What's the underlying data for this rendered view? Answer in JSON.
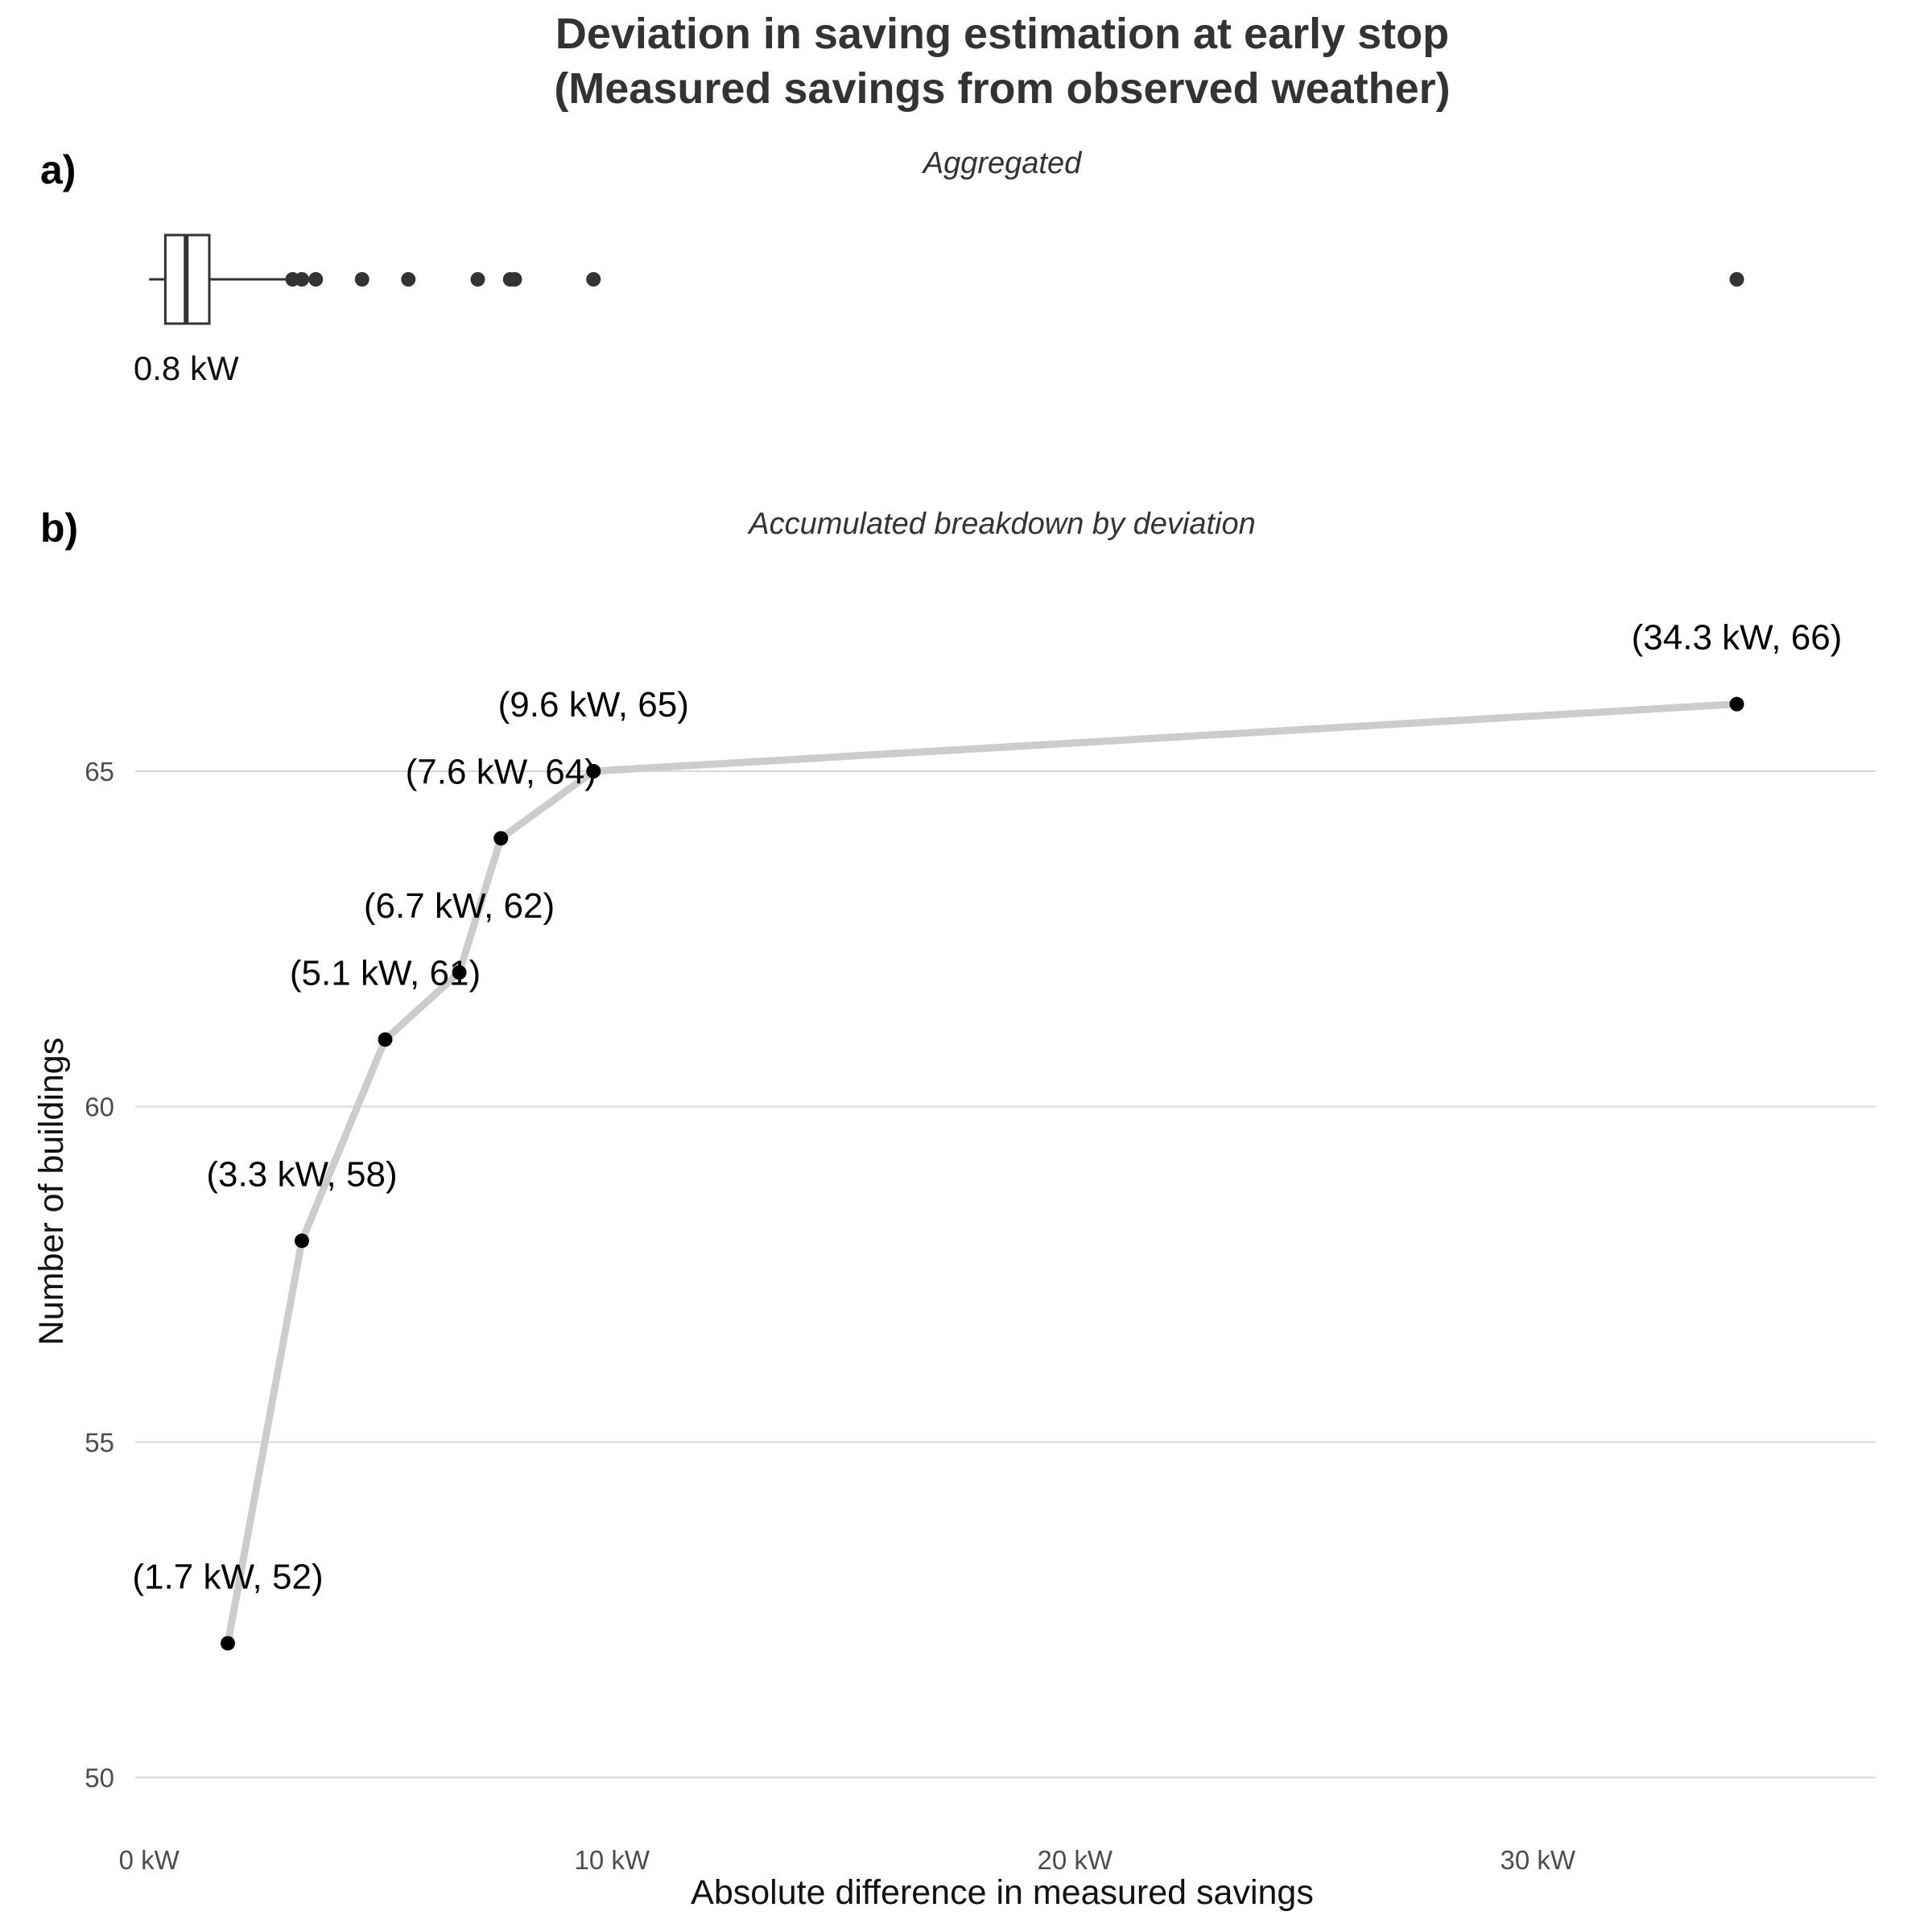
{
  "title_line1": "Deviation in saving estimation at early stop",
  "title_line2": "(Measured savings from observed weather)",
  "chart_data": [
    {
      "panel": "a)",
      "subtitle": "Aggregated",
      "type": "boxplot",
      "orientation": "horizontal",
      "box": {
        "whisker_low": 0.0,
        "q1": 0.35,
        "median": 0.8,
        "q3": 1.3,
        "whisker_high": 3.1
      },
      "outliers": [
        3.1,
        3.3,
        3.6,
        4.6,
        5.6,
        7.1,
        7.8,
        7.9,
        9.6,
        34.3
      ],
      "median_label": "0.8 kW",
      "xlim": [
        -0.3,
        37.3
      ],
      "colors": {
        "box": "#333333",
        "points": "#333333"
      }
    },
    {
      "panel": "b)",
      "subtitle": "Accumulated breakdown by deviation",
      "type": "line",
      "xlabel": "Absolute difference in measured savings",
      "ylabel": "Number of buildings",
      "points": [
        {
          "x": 1.7,
          "y": 52,
          "label": "(1.7 kW, 52)"
        },
        {
          "x": 3.3,
          "y": 58,
          "label": "(3.3 kW, 58)"
        },
        {
          "x": 5.1,
          "y": 61,
          "label": "(5.1 kW, 61)"
        },
        {
          "x": 6.7,
          "y": 62,
          "label": "(6.7 kW, 62)"
        },
        {
          "x": 7.6,
          "y": 64,
          "label": "(7.6 kW, 64)"
        },
        {
          "x": 9.6,
          "y": 65,
          "label": "(9.6 kW, 65)"
        },
        {
          "x": 34.3,
          "y": 66,
          "label": "(34.3 kW, 66)"
        }
      ],
      "xlim": [
        -0.3,
        37.3
      ],
      "ylim": [
        49.5,
        67.5
      ],
      "x_ticks": [
        {
          "value": 0,
          "label": "0 kW"
        },
        {
          "value": 10,
          "label": "10 kW"
        },
        {
          "value": 20,
          "label": "20 kW"
        },
        {
          "value": 30,
          "label": "30 kW"
        }
      ],
      "y_ticks": [
        {
          "value": 50,
          "label": "50"
        },
        {
          "value": 55,
          "label": "55"
        },
        {
          "value": 60,
          "label": "60"
        },
        {
          "value": 65,
          "label": "65"
        }
      ],
      "grid": "horizontal-major",
      "colors": {
        "line": "#cccccc",
        "points": "#000000",
        "grid": "#d9d9d9"
      }
    }
  ]
}
